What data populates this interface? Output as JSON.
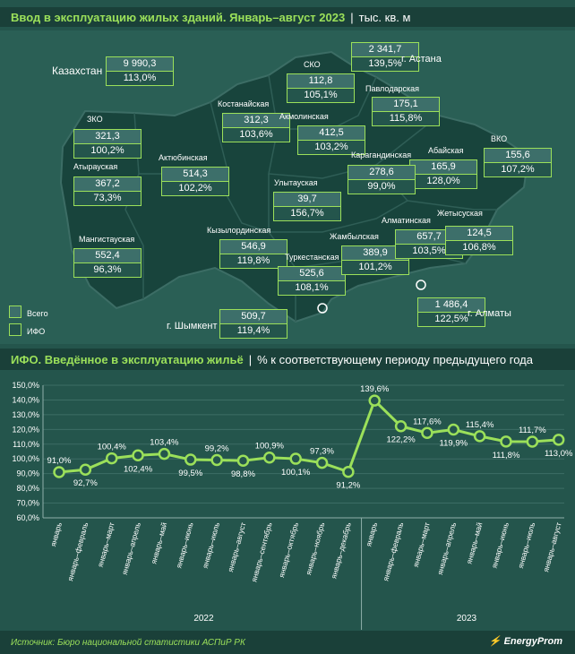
{
  "map_title": {
    "main": "Ввод в эксплуатацию жилых зданий. Январь–август 2023",
    "unit": "тыс. кв. м"
  },
  "chart_title": {
    "main": "ИФО. Введённое в эксплуатацию жильё",
    "sub": "% к соответствующему периоду предыдущего года"
  },
  "legend": {
    "total": "Всего",
    "ifo": "ИФО"
  },
  "kazakhstan": {
    "label": "Казахстан",
    "total": "9 990,3",
    "ifo": "113,0%"
  },
  "regions": [
    {
      "name": "ЗКО",
      "total": "321,3",
      "ifo": "100,2%"
    },
    {
      "name": "Атырауская",
      "total": "367,2",
      "ifo": "73,3%"
    },
    {
      "name": "Мангистауская",
      "total": "552,4",
      "ifo": "96,3%"
    },
    {
      "name": "Актюбинская",
      "total": "514,3",
      "ifo": "102,2%"
    },
    {
      "name": "Костанайская",
      "total": "312,3",
      "ifo": "103,6%"
    },
    {
      "name": "СКО",
      "total": "112,8",
      "ifo": "105,1%"
    },
    {
      "name": "Акмолинская",
      "total": "412,5",
      "ifo": "103,2%"
    },
    {
      "name": "Павлодарская",
      "total": "175,1",
      "ifo": "115,8%"
    },
    {
      "name": "ВКО",
      "total": "155,6",
      "ifo": "107,2%"
    },
    {
      "name": "Абайская",
      "total": "165,9",
      "ifo": "128,0%"
    },
    {
      "name": "Карагандинская",
      "total": "278,6",
      "ifo": "99,0%"
    },
    {
      "name": "Улытауская",
      "total": "39,7",
      "ifo": "156,7%"
    },
    {
      "name": "Кызылординская",
      "total": "546,9",
      "ifo": "119,8%"
    },
    {
      "name": "Туркестанская",
      "total": "525,6",
      "ifo": "108,1%"
    },
    {
      "name": "Жамбылская",
      "total": "389,9",
      "ifo": "101,2%"
    },
    {
      "name": "Алматинская",
      "total": "657,7",
      "ifo": "103,5%"
    },
    {
      "name": "Жетысуская",
      "total": "124,5",
      "ifo": "106,8%"
    }
  ],
  "cities": [
    {
      "name": "г. Астана",
      "total": "2 341,7",
      "ifo": "139,5%"
    },
    {
      "name": "г. Шымкент",
      "total": "509,7",
      "ifo": "119,4%"
    },
    {
      "name": "г. Алматы",
      "total": "1 486,4",
      "ifo": "122,5%"
    }
  ],
  "chart_data": {
    "type": "line",
    "title": "ИФО. Введённое в эксплуатацию жильё",
    "ylabel": "% к соответствующему периоду предыдущего года",
    "ylim": [
      60,
      150
    ],
    "yticks": [
      "60,0%",
      "70,0%",
      "80,0%",
      "90,0%",
      "100,0%",
      "110,0%",
      "120,0%",
      "130,0%",
      "140,0%",
      "150,0%"
    ],
    "grid": true,
    "categories": [
      "январь",
      "январь–февраль",
      "январь–март",
      "январь–апрель",
      "январь–май",
      "январь–июнь",
      "январь–июль",
      "январь–август",
      "январь–сентябрь",
      "январь–октябрь",
      "январь–ноябрь",
      "январь–декабрь",
      "январь",
      "январь–февраль",
      "январь–март",
      "январь–апрель",
      "январь–май",
      "январь–июнь",
      "январь–июль",
      "январь–август"
    ],
    "groups": [
      {
        "label": "2022",
        "count": 12
      },
      {
        "label": "2023",
        "count": 8
      }
    ],
    "values": [
      91.0,
      92.7,
      100.4,
      102.4,
      103.4,
      99.5,
      99.2,
      98.8,
      100.9,
      100.1,
      97.3,
      91.2,
      139.6,
      122.2,
      117.6,
      119.9,
      115.4,
      111.8,
      111.7,
      113.0
    ],
    "value_labels": [
      "91,0%",
      "92,7%",
      "100,4%",
      "102,4%",
      "103,4%",
      "99,5%",
      "99,2%",
      "98,8%",
      "100,9%",
      "100,1%",
      "97,3%",
      "91,2%",
      "139,6%",
      "122,2%",
      "117,6%",
      "119,9%",
      "115,4%",
      "111,8%",
      "111,7%",
      "113,0%"
    ],
    "label_positions": [
      "above",
      "below",
      "above",
      "below",
      "above",
      "below",
      "above",
      "below",
      "above",
      "below",
      "above",
      "below",
      "above",
      "below",
      "above",
      "below",
      "above",
      "below",
      "above",
      "below"
    ],
    "colors": {
      "line": "#9be05a",
      "marker": "#9be05a",
      "grid": "#3c6d65"
    }
  },
  "footer": {
    "source": "Источник: Бюро национальной статистики АСПиР РК",
    "brand": "EnergyProm"
  }
}
